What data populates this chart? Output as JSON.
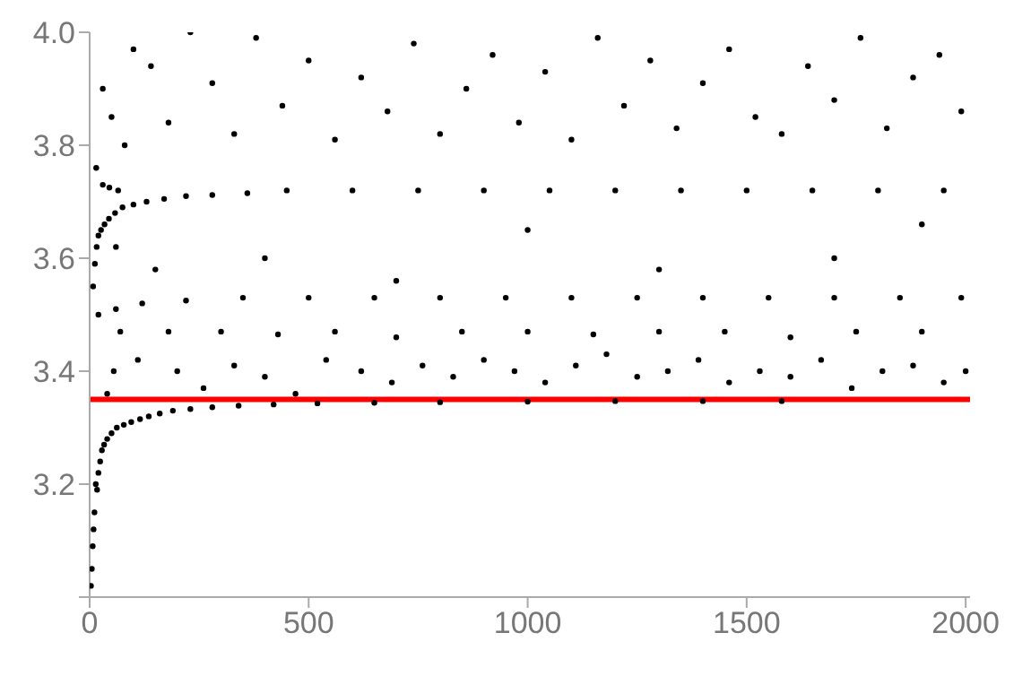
{
  "chart_data": {
    "type": "scatter",
    "xlim": [
      0,
      2010
    ],
    "ylim": [
      3.0,
      4.0
    ],
    "xticks": [
      0,
      500,
      1000,
      1500,
      2000
    ],
    "yticks": [
      {
        "value": 3.0,
        "label": null
      },
      3.2,
      3.4,
      3.6,
      3.8,
      {
        "value": 4.0,
        "label": "4.0"
      }
    ],
    "marker": "circle",
    "grid": false,
    "ref_lines": [
      {
        "axis": "y",
        "value": 3.35,
        "color": "#ff0000"
      }
    ],
    "series": [
      {
        "color": "#000000",
        "x": [
          3,
          5,
          7,
          9,
          11,
          14,
          17,
          20,
          24,
          28,
          33,
          40,
          50,
          62,
          78,
          95,
          115,
          135,
          160,
          190,
          230,
          280,
          340,
          420,
          520,
          650,
          800,
          1000,
          1200,
          1400,
          1580,
          8,
          12,
          16,
          20,
          26,
          34,
          44,
          58,
          75,
          100,
          130,
          170,
          220,
          280,
          360,
          30,
          45,
          65,
          450,
          600,
          750,
          900,
          1050,
          1200,
          1350,
          1500,
          1650,
          1800,
          1950,
          20,
          60,
          120,
          220,
          350,
          500,
          650,
          800,
          950,
          1100,
          1250,
          1400,
          1550,
          1700,
          1850,
          1990,
          70,
          180,
          300,
          430,
          560,
          700,
          850,
          1000,
          1150,
          1300,
          1450,
          1600,
          1750,
          1900,
          40,
          55,
          110,
          200,
          260,
          330,
          400,
          470,
          540,
          620,
          690,
          760,
          830,
          900,
          970,
          1040,
          1110,
          1180,
          1250,
          1320,
          1390,
          1460,
          1530,
          1600,
          1670,
          1740,
          1810,
          1880,
          1950,
          2000,
          60,
          150,
          400,
          700,
          1000,
          1300,
          1700,
          1900,
          15,
          30,
          50,
          80,
          100,
          140,
          180,
          230,
          280,
          330,
          380,
          440,
          500,
          560,
          620,
          680,
          740,
          800,
          860,
          920,
          980,
          1040,
          1100,
          1160,
          1220,
          1280,
          1340,
          1400,
          1460,
          1520,
          1580,
          1640,
          1700,
          1760,
          1820,
          1880,
          1940,
          1990
        ],
        "values": [
          3.02,
          3.05,
          3.09,
          3.12,
          3.15,
          3.2,
          3.19,
          3.22,
          3.24,
          3.26,
          3.27,
          3.28,
          3.29,
          3.3,
          3.305,
          3.31,
          3.315,
          3.32,
          3.325,
          3.33,
          3.333,
          3.336,
          3.339,
          3.341,
          3.343,
          3.344,
          3.345,
          3.346,
          3.347,
          3.347,
          3.347,
          3.55,
          3.59,
          3.62,
          3.64,
          3.65,
          3.66,
          3.67,
          3.68,
          3.69,
          3.695,
          3.7,
          3.705,
          3.71,
          3.712,
          3.715,
          3.73,
          3.725,
          3.72,
          3.72,
          3.72,
          3.72,
          3.72,
          3.72,
          3.72,
          3.72,
          3.72,
          3.72,
          3.72,
          3.72,
          3.5,
          3.51,
          3.52,
          3.525,
          3.53,
          3.53,
          3.53,
          3.53,
          3.53,
          3.53,
          3.53,
          3.53,
          3.53,
          3.53,
          3.53,
          3.53,
          3.47,
          3.47,
          3.47,
          3.465,
          3.47,
          3.46,
          3.47,
          3.47,
          3.465,
          3.47,
          3.47,
          3.46,
          3.47,
          3.47,
          3.36,
          3.4,
          3.42,
          3.4,
          3.37,
          3.41,
          3.39,
          3.36,
          3.42,
          3.4,
          3.38,
          3.41,
          3.39,
          3.42,
          3.4,
          3.38,
          3.41,
          3.43,
          3.39,
          3.4,
          3.42,
          3.38,
          3.4,
          3.39,
          3.42,
          3.37,
          3.4,
          3.41,
          3.38,
          3.4,
          3.62,
          3.58,
          3.6,
          3.56,
          3.65,
          3.58,
          3.6,
          3.66,
          3.76,
          3.9,
          3.85,
          3.8,
          3.97,
          3.94,
          3.84,
          4.0,
          3.91,
          3.82,
          3.99,
          3.87,
          3.95,
          3.81,
          3.92,
          3.86,
          3.98,
          3.82,
          3.9,
          3.96,
          3.84,
          3.93,
          3.81,
          3.99,
          3.87,
          3.95,
          3.83,
          3.91,
          3.97,
          3.85,
          3.82,
          3.94,
          3.88,
          3.99,
          3.83,
          3.92,
          3.96,
          3.86
        ]
      }
    ]
  }
}
